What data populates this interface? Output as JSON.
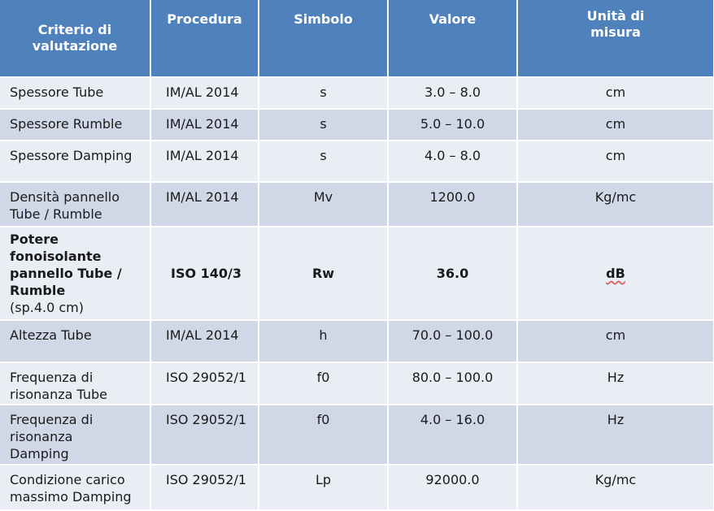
{
  "table": {
    "headers": {
      "criterio": [
        "Criterio di",
        "valutazione"
      ],
      "procedura": "Procedura",
      "simbolo": "Simbolo",
      "valore": "Valore",
      "unita": [
        "Unità di",
        "misura"
      ]
    },
    "rows": [
      {
        "criterio": [
          "Spessore Tube"
        ],
        "procedura": "IM/AL 2014",
        "simbolo": "s",
        "valore": "3.0 – 8.0",
        "unita": "cm"
      },
      {
        "criterio": [
          "Spessore Rumble"
        ],
        "procedura": "IM/AL 2014",
        "simbolo": "s",
        "valore": "5.0 – 10.0",
        "unita": "cm"
      },
      {
        "criterio": [
          "Spessore Damping"
        ],
        "procedura": "IM/AL 2014",
        "simbolo": "s",
        "valore": "4.0 – 8.0",
        "unita": "cm"
      },
      {
        "criterio": [
          "Densità pannello",
          "Tube / Rumble"
        ],
        "procedura": "IM/AL 2014",
        "simbolo": "Mv",
        "valore": "1200.0",
        "unita": "Kg/mc"
      },
      {
        "criterio": [
          "Potere",
          "fonoisolante",
          "pannello Tube /",
          "Rumble"
        ],
        "criterio_note": "(sp.4.0 cm)",
        "procedura": "ISO 140/3",
        "simbolo": "Rw",
        "valore": "36.0",
        "unita": "dB"
      },
      {
        "criterio": [
          "Altezza Tube"
        ],
        "procedura": "IM/AL 2014",
        "simbolo": "h",
        "valore": "70.0 – 100.0",
        "unita": "cm"
      },
      {
        "criterio": [
          "Frequenza di",
          "risonanza Tube"
        ],
        "procedura": "ISO 29052/1",
        "simbolo": "f0",
        "valore": "80.0 – 100.0",
        "unita": "Hz"
      },
      {
        "criterio": [
          "Frequenza di",
          "risonanza",
          "Damping"
        ],
        "procedura": "ISO 29052/1",
        "simbolo": "f0",
        "valore": "4.0 – 16.0",
        "unita": "Hz"
      },
      {
        "criterio": [
          "Condizione carico",
          "massimo Damping"
        ],
        "procedura": "ISO 29052/1",
        "simbolo": "Lp",
        "valore": "92000.0",
        "unita": "Kg/mc"
      }
    ]
  },
  "colors": {
    "header_bg": "#4f81bd",
    "row_light": "#e9edf4",
    "row_dark": "#d0d8e8"
  }
}
